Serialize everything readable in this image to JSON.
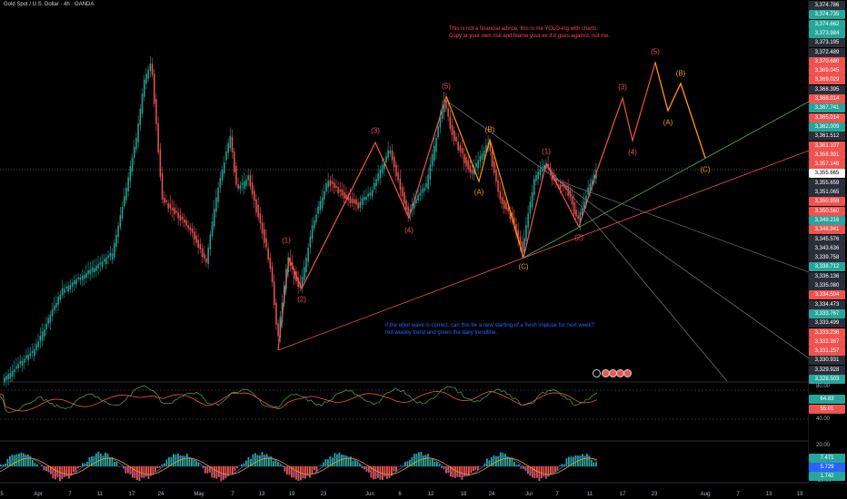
{
  "title": "Gold Spot / U.S. Dollar · 4h · OANDA",
  "note_top": [
    "This is not a financial advice, this is me YOLO-ing with charts.",
    "Copy at your own risk and blame your ex if it goes against, not me."
  ],
  "note_bottom": [
    "if the elliot wave is correct, can this be a new starting of a fresh impluse for next week?",
    "red weekly trend and green the daily trendline."
  ],
  "colors": {
    "up": "#26a69a",
    "down": "#ef5350",
    "bull_wave": "#ef5350",
    "corr_wave": "#ff9800",
    "blue": "#2962ff",
    "current": "#ffffff",
    "text_red": "#ff4444",
    "text_blue": "#2962ff",
    "text_orange": "#ff9800"
  },
  "price_labels": [
    {
      "v": "3,374.786",
      "c": "#2a2e39"
    },
    {
      "v": "3,374.735",
      "c": "#26a69a"
    },
    {
      "v": "3,374.662",
      "c": "#26a69a"
    },
    {
      "v": "3,373.984",
      "c": "#26a69a"
    },
    {
      "v": "3,373.195",
      "c": "#2a2e39"
    },
    {
      "v": "3,372.489",
      "c": "#2a2e39"
    },
    {
      "v": "3,370.680",
      "c": "#ef5350"
    },
    {
      "v": "3,369.045",
      "c": "#ef5350"
    },
    {
      "v": "3,369.029",
      "c": "#ef5350"
    },
    {
      "v": "3,368.395",
      "c": "#2a2e39"
    },
    {
      "v": "3,368.014",
      "c": "#ef5350"
    },
    {
      "v": "3,367.741",
      "c": "#26a69a"
    },
    {
      "v": "3,365.014",
      "c": "#ef5350"
    },
    {
      "v": "3,362.009",
      "c": "#26a69a"
    },
    {
      "v": "3,361.512",
      "c": "#2a2e39"
    },
    {
      "v": "3,361.107",
      "c": "#ef5350"
    },
    {
      "v": "3,358.391",
      "c": "#ef5350"
    },
    {
      "v": "3,357.146",
      "c": "#ef5350"
    },
    {
      "v": "3,355.665",
      "c": "#ffffff"
    },
    {
      "v": "3,355.659",
      "c": "#2a2e39"
    },
    {
      "v": "3,351.065",
      "c": "#2a2e39"
    },
    {
      "v": "3,350.958",
      "c": "#ef5350"
    },
    {
      "v": "3,350.560",
      "c": "#ef5350"
    },
    {
      "v": "3,349.216",
      "c": "#26a69a"
    },
    {
      "v": "3,348.941",
      "c": "#ef5350"
    },
    {
      "v": "3,345.576",
      "c": "#2a2e39"
    },
    {
      "v": "3,343.636",
      "c": "#2a2e39"
    },
    {
      "v": "3,339.758",
      "c": "#2a2e39"
    },
    {
      "v": "3,338.712",
      "c": "#26a69a"
    },
    {
      "v": "3,336.136",
      "c": "#2a2e39"
    },
    {
      "v": "3,335.080",
      "c": "#2a2e39"
    },
    {
      "v": "3,334.504",
      "c": "#ef5350"
    },
    {
      "v": "3,334.473",
      "c": "#2a2e39"
    },
    {
      "v": "3,333.767",
      "c": "#26a69a"
    },
    {
      "v": "3,333.499",
      "c": "#2a2e39"
    },
    {
      "v": "3,333.236",
      "c": "#ef5350"
    },
    {
      "v": "3,332.367",
      "c": "#ef5350"
    },
    {
      "v": "3,331.257",
      "c": "#ef5350"
    },
    {
      "v": "3,330.931",
      "c": "#2a2e39"
    },
    {
      "v": "3,329.928",
      "c": "#2a2e39"
    },
    {
      "v": "3,328.503",
      "c": "#26a69a"
    }
  ],
  "rsi": {
    "scale": [
      "80.00",
      "40.00"
    ],
    "value1": "64.83",
    "value2": "55.01"
  },
  "macd": {
    "scale": [
      "20.00",
      "-20.00"
    ],
    "value1": "7.471",
    "value2": "5.729",
    "value3": "1.742"
  },
  "x_axis": [
    "5",
    "Apr",
    "7",
    "11",
    "17",
    "24",
    "May",
    "7",
    "13",
    "19",
    "23",
    "Jun",
    "6",
    "12",
    "18",
    "24",
    "Jul",
    "7",
    "11",
    "17",
    "23",
    "Aug",
    "7",
    "13",
    "19"
  ],
  "wave_labels": [
    {
      "t": "(5)",
      "c": "red"
    },
    {
      "t": "(3)",
      "c": "red"
    },
    {
      "t": "(B)",
      "c": "orange"
    },
    {
      "t": "(1)",
      "c": "red"
    },
    {
      "t": "(A)",
      "c": "orange"
    },
    {
      "t": "(4)",
      "c": "red"
    },
    {
      "t": "(1)",
      "c": "red"
    },
    {
      "t": "(2)",
      "c": "red"
    },
    {
      "t": "(C)",
      "c": "orange"
    },
    {
      "t": "(2)",
      "c": "red"
    },
    {
      "t": "(3)",
      "c": "red"
    },
    {
      "t": "(4)",
      "c": "red"
    },
    {
      "t": "(5)",
      "c": "red"
    },
    {
      "t": "(B)",
      "c": "orange"
    },
    {
      "t": "(A)",
      "c": "orange"
    },
    {
      "t": "(C)",
      "c": "orange"
    }
  ]
}
